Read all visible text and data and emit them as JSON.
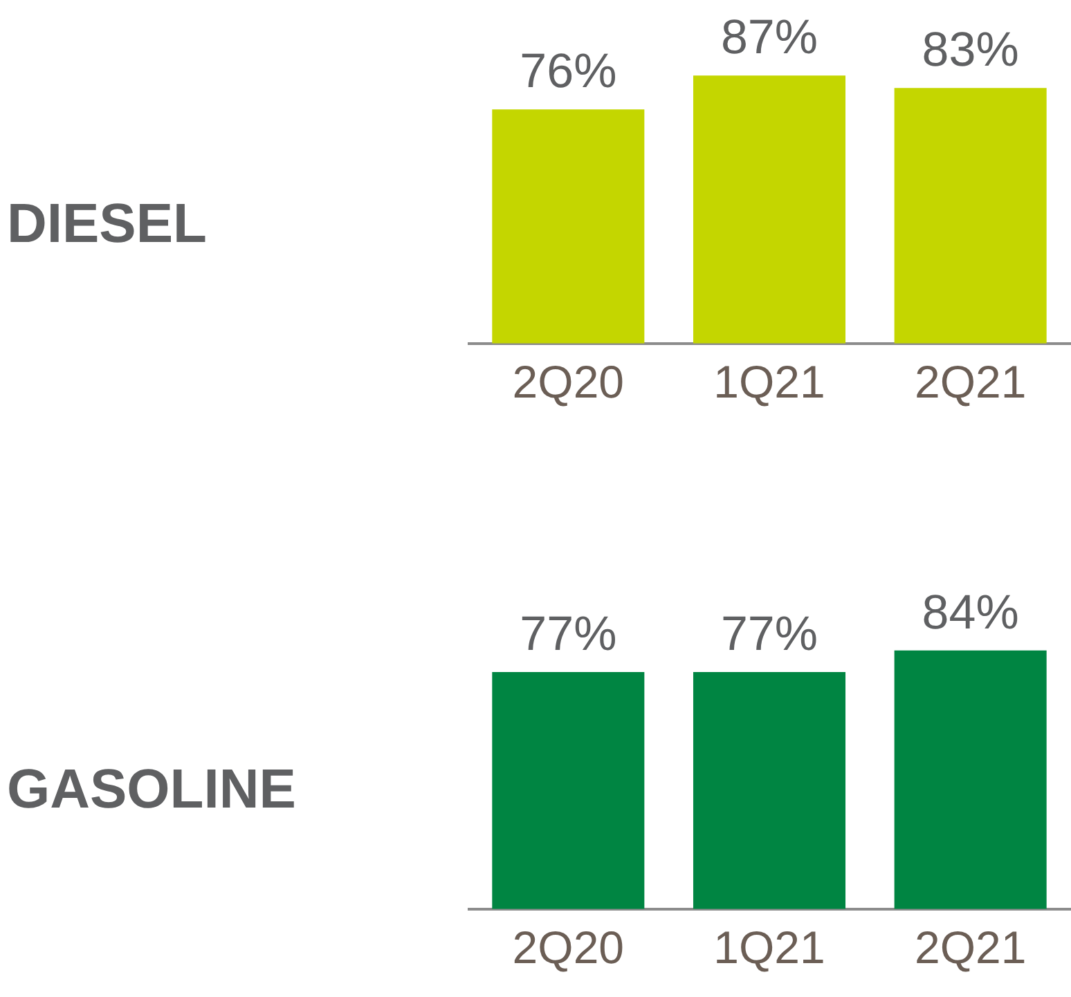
{
  "chart_data": [
    {
      "type": "bar",
      "title": "DIESEL",
      "categories": [
        "2Q20",
        "1Q21",
        "2Q21"
      ],
      "values": [
        76,
        87,
        83
      ],
      "value_labels": [
        "76%",
        "87%",
        "83%"
      ],
      "color": "#c4d600",
      "tick_labels": "x"
    },
    {
      "type": "bar",
      "title": "GASOLINE",
      "categories": [
        "2Q20",
        "1Q21",
        "2Q21"
      ],
      "values": [
        77,
        77,
        84
      ],
      "value_labels": [
        "77%",
        "77%",
        "84%"
      ],
      "color": "#008542",
      "tick_labels": "x"
    }
  ]
}
